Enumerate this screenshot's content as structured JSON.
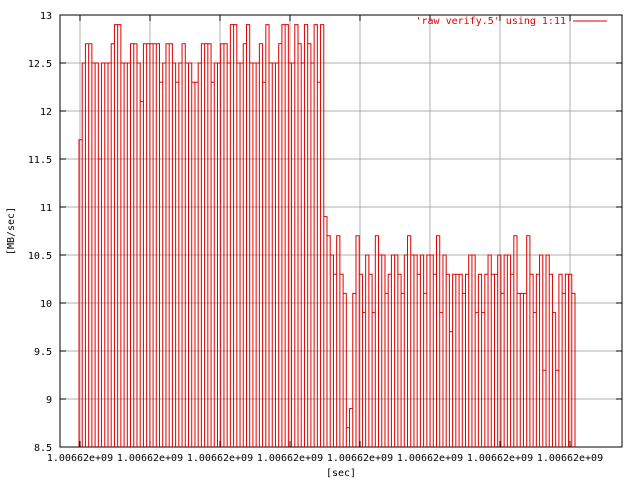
{
  "chart_data": {
    "type": "line",
    "style": "steps",
    "ylabel": "[MB/sec]",
    "xlabel": "[sec]",
    "ylim": [
      8.5,
      13
    ],
    "yticks": [
      "8.5",
      "9",
      "9.5",
      "10",
      "10.5",
      "11",
      "11.5",
      "12",
      "12.5",
      "13"
    ],
    "xtick_label": "1.00662e+09",
    "xtick_count": 8,
    "grid": true,
    "legend_position": "top-right",
    "colors": {
      "series": "#e00000",
      "grid": "#b0b0b0",
      "axis": "#000000"
    },
    "series": [
      {
        "name": "'raw verify.5' using 1:11",
        "values": [
          11.7,
          12.5,
          12.7,
          12.7,
          12.5,
          12.5,
          11.5,
          12.5,
          12.5,
          12.5,
          12.7,
          12.9,
          12.9,
          12.5,
          12.5,
          12.5,
          12.7,
          12.7,
          12.5,
          12.1,
          12.7,
          12.7,
          12.7,
          12.7,
          12.7,
          12.3,
          12.5,
          12.7,
          12.7,
          12.5,
          12.3,
          12.5,
          12.7,
          12.5,
          12.5,
          12.3,
          12.3,
          12.5,
          12.7,
          12.7,
          12.7,
          12.3,
          12.5,
          12.5,
          12.7,
          12.7,
          12.5,
          12.9,
          12.9,
          12.5,
          12.5,
          12.7,
          12.9,
          12.5,
          12.5,
          12.5,
          12.7,
          12.3,
          12.9,
          12.5,
          12.5,
          12.5,
          12.7,
          12.9,
          12.9,
          12.5,
          12.5,
          12.9,
          12.7,
          12.5,
          12.9,
          12.7,
          12.5,
          12.9,
          12.3,
          12.9,
          10.9,
          10.7,
          10.5,
          10.3,
          10.7,
          10.3,
          10.1,
          8.7,
          8.9,
          10.1,
          10.7,
          10.3,
          9.9,
          10.5,
          10.3,
          9.9,
          10.7,
          10.5,
          10.5,
          10.1,
          10.3,
          10.5,
          10.5,
          10.3,
          10.1,
          10.5,
          10.7,
          10.5,
          10.5,
          10.3,
          10.5,
          10.1,
          10.5,
          10.5,
          10.3,
          10.7,
          9.9,
          10.5,
          10.3,
          9.7,
          10.3,
          10.3,
          10.3,
          10.1,
          10.3,
          10.5,
          10.5,
          9.9,
          10.3,
          9.9,
          10.3,
          10.5,
          10.3,
          10.3,
          10.5,
          10.1,
          10.5,
          10.5,
          10.3,
          10.7,
          10.1,
          10.1,
          10.1,
          10.7,
          10.3,
          9.9,
          10.3,
          10.5,
          9.3,
          10.5,
          10.3,
          9.9,
          9.3,
          10.3,
          10.1,
          10.3,
          10.3,
          10.1
        ]
      }
    ]
  }
}
